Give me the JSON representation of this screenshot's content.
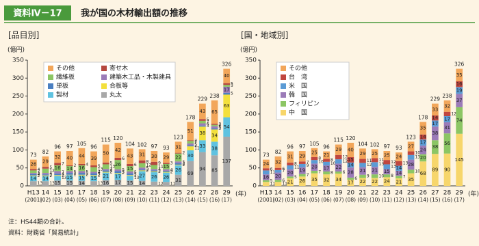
{
  "header": {
    "label": "資料Ⅳ－17",
    "title": "我が国の木材輸出額の推移"
  },
  "notes": [
    "注：HS44類の合計。",
    "資料：財務省「貿易統計」"
  ],
  "chart_data": [
    {
      "type": "bar",
      "stacked": true,
      "subtitle": "[品目別]",
      "y_unit": "(億円)",
      "x_unit": "(年)",
      "categories": [
        "H13",
        "14",
        "15",
        "16",
        "17",
        "18",
        "19",
        "20",
        "21",
        "22",
        "23",
        "24",
        "25",
        "26",
        "27",
        "28",
        "29"
      ],
      "category_years": [
        "(2001)",
        "(02)",
        "(03)",
        "(04)",
        "(05)",
        "(06)",
        "(07)",
        "(08)",
        "(09)",
        "(10)",
        "(11)",
        "(12)",
        "(13)",
        "(14)",
        "(15)",
        "(16)",
        "(17)"
      ],
      "totals": [
        73,
        82,
        96,
        97,
        105,
        96,
        115,
        120,
        104,
        102,
        97,
        93,
        123,
        178,
        229,
        238,
        326
      ],
      "ylim": [
        0,
        350
      ],
      "yticks": [
        0,
        50,
        100,
        150,
        200,
        250,
        300,
        350
      ],
      "legend_columns": 2,
      "series": [
        {
          "name": "その他",
          "color": "#f2a65a",
          "values": [
            26,
            29,
            32,
            40,
            44,
            39,
            50,
            42,
            43,
            31,
            30,
            29,
            31,
            51,
            43,
            65,
            40
          ]
        },
        {
          "name": "寄せ木",
          "color": "#b5473f",
          "values": [
            4,
            5,
            7,
            2,
            4,
            5,
            5,
            6,
            6,
            8,
            9,
            3,
            2,
            2,
            5,
            3,
            5
          ]
        },
        {
          "name": "繊維板",
          "color": "#8cc664",
          "values": [
            7,
            12,
            16,
            14,
            16,
            13,
            13,
            26,
            15,
            12,
            11,
            15,
            22,
            7,
            7,
            4,
            5
          ]
        },
        {
          "name": "建築木工品・木製建具",
          "color": "#9b7bb8",
          "values": [
            3,
            4,
            7,
            5,
            5,
            4,
            4,
            5,
            5,
            5,
            4,
            4,
            5,
            5,
            6,
            6,
            17
          ]
        },
        {
          "name": "単板",
          "color": "#4a7fc1",
          "values": [
            4,
            3,
            4,
            5,
            5,
            5,
            4,
            5,
            5,
            3,
            3,
            3,
            4,
            3,
            3,
            3,
            5
          ]
        },
        {
          "name": "合板等",
          "color": "#f3e03c",
          "values": [
            2,
            2,
            2,
            1,
            2,
            2,
            2,
            2,
            2,
            2,
            2,
            2,
            2,
            11,
            38,
            34,
            63
          ]
        },
        {
          "name": "製材",
          "color": "#5fc2e0",
          "values": [
            14,
            14,
            13,
            15,
            15,
            15,
            21,
            17,
            13,
            27,
            26,
            26,
            26,
            30,
            33,
            38,
            54
          ]
        },
        {
          "name": "丸太",
          "color": "#a8a8a8",
          "values": [
            13,
            13,
            15,
            15,
            14,
            13,
            16,
            17,
            15,
            14,
            12,
            11,
            31,
            69,
            94,
            85,
            137
          ]
        }
      ]
    },
    {
      "type": "bar",
      "stacked": true,
      "subtitle": "[国・地域別]",
      "y_unit": "(億円)",
      "x_unit": "(年)",
      "categories": [
        "H13",
        "14",
        "15",
        "16",
        "17",
        "18",
        "19",
        "20",
        "21",
        "22",
        "23",
        "24",
        "25",
        "26",
        "27",
        "28",
        "29"
      ],
      "category_years": [
        "(2001)",
        "(02)",
        "(03)",
        "(04)",
        "(05)",
        "(06)",
        "(07)",
        "(08)",
        "(09)",
        "(10)",
        "(11)",
        "(12)",
        "(13)",
        "(14)",
        "(15)",
        "(16)",
        "(17)"
      ],
      "totals": [
        73,
        82,
        96,
        97,
        105,
        96,
        115,
        120,
        104,
        102,
        97,
        93,
        123,
        178,
        229,
        238,
        326
      ],
      "ylim": [
        0,
        350
      ],
      "yticks": [
        0,
        50,
        100,
        150,
        200,
        250,
        300,
        350
      ],
      "legend_columns": 1,
      "series": [
        {
          "name": "その他",
          "color": "#f2a65a",
          "values": [
            24,
            32,
            31,
            29,
            25,
            21,
            29,
            40,
            29,
            25,
            25,
            24,
            27,
            35,
            33,
            32,
            35
          ]
        },
        {
          "name": "台　湾",
          "color": "#c0463f",
          "values": [
            6,
            6,
            8,
            7,
            8,
            8,
            12,
            15,
            11,
            11,
            12,
            13,
            10,
            14,
            14,
            12,
            16
          ]
        },
        {
          "name": "米　国",
          "color": "#5b9bd5",
          "values": [
            11,
            7,
            11,
            9,
            10,
            10,
            12,
            14,
            12,
            13,
            13,
            14,
            13,
            17,
            17,
            17,
            19
          ]
        },
        {
          "name": "韓　国",
          "color": "#9b7bb8",
          "values": [
            16,
            20,
            20,
            19,
            20,
            17,
            22,
            28,
            21,
            21,
            15,
            14,
            28,
            24,
            38,
            31,
            37
          ]
        },
        {
          "name": "フィリピン",
          "color": "#8cc664",
          "values": [
            5,
            6,
            5,
            7,
            7,
            8,
            6,
            6,
            9,
            10,
            8,
            7,
            10,
            20,
            38,
            56,
            74
          ]
        },
        {
          "name": "中　国",
          "color": "#f7d66b",
          "values": [
            11,
            11,
            21,
            26,
            35,
            32,
            34,
            17,
            22,
            22,
            24,
            21,
            35,
            68,
            89,
            90,
            145
          ]
        }
      ]
    }
  ]
}
